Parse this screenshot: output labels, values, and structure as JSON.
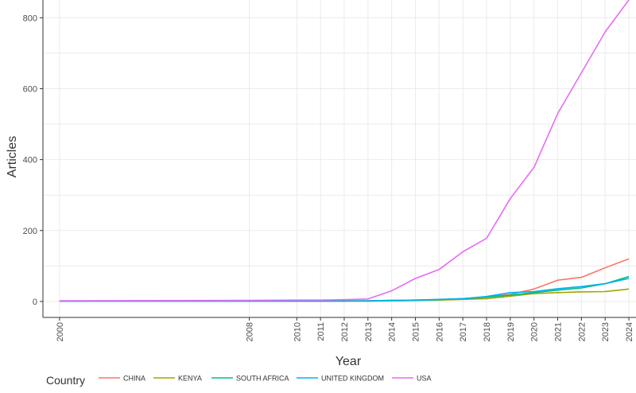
{
  "chart_data": {
    "type": "line",
    "title": "",
    "xlabel": "Year",
    "ylabel": "Articles",
    "xlim": [
      1999.3,
      2024.3
    ],
    "ylim": [
      -45,
      850
    ],
    "y_ticks": [
      0,
      200,
      400,
      600,
      800
    ],
    "x_ticks": [
      2000,
      2008,
      2010,
      2011,
      2012,
      2013,
      2014,
      2015,
      2016,
      2017,
      2018,
      2019,
      2020,
      2021,
      2022,
      2023,
      2024
    ],
    "grid": true,
    "legend_title": "Country",
    "legend_position": "bottom",
    "x": [
      2000,
      2008,
      2010,
      2011,
      2012,
      2013,
      2014,
      2015,
      2016,
      2017,
      2018,
      2019,
      2020,
      2021,
      2022,
      2023,
      2024
    ],
    "series": [
      {
        "name": "CHINA",
        "color": "#F8766D",
        "values": [
          1,
          1,
          1,
          1,
          2,
          2,
          3,
          4,
          5,
          8,
          12,
          20,
          35,
          60,
          68,
          95,
          120
        ]
      },
      {
        "name": "KENYA",
        "color": "#A3A500",
        "values": [
          1,
          1,
          1,
          1,
          1,
          1,
          2,
          3,
          4,
          6,
          8,
          15,
          22,
          25,
          27,
          28,
          35
        ]
      },
      {
        "name": "SOUTH AFRICA",
        "color": "#00BF7D",
        "values": [
          1,
          1,
          1,
          1,
          1,
          1,
          2,
          3,
          5,
          8,
          12,
          18,
          25,
          32,
          38,
          50,
          70
        ]
      },
      {
        "name": "UNITED KINGDOM",
        "color": "#00B0F6",
        "values": [
          1,
          1,
          1,
          1,
          1,
          2,
          3,
          4,
          6,
          8,
          14,
          25,
          28,
          36,
          42,
          50,
          65
        ]
      },
      {
        "name": "USA",
        "color": "#E76BF3",
        "values": [
          2,
          3,
          4,
          4,
          5,
          7,
          30,
          65,
          90,
          140,
          178,
          290,
          378,
          530,
          645,
          760,
          850
        ]
      }
    ]
  }
}
